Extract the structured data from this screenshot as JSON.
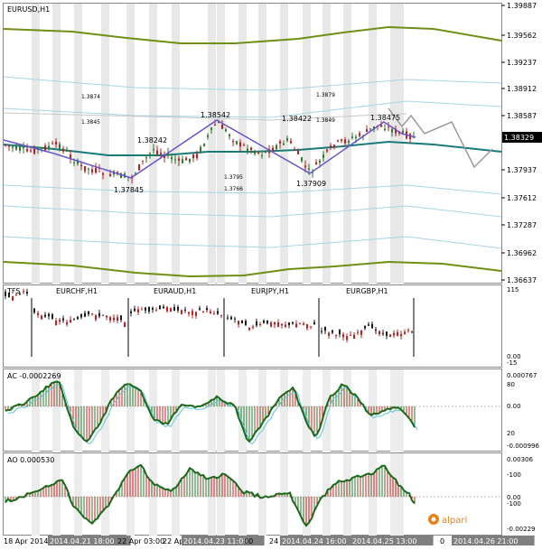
{
  "symbol": "EURUSD,H1",
  "main_prices": [
    "1.39887",
    "1.39562",
    "1.39237",
    "1.38912",
    "1.38587",
    "1.38329",
    "1.37937",
    "1.37612",
    "1.37287",
    "1.36962",
    "1.36637"
  ],
  "current_price": "1.38329",
  "main_labels": [
    {
      "text": "1.3874"
    },
    {
      "text": "1.3845"
    },
    {
      "text": "1.38542"
    },
    {
      "text": "1.38242"
    },
    {
      "text": "1.37845"
    },
    {
      "text": "1.3795"
    },
    {
      "text": "1.3766"
    },
    {
      "text": "1.38422"
    },
    {
      "text": "1.3849"
    },
    {
      "text": "1.3879"
    },
    {
      "text": "1.37909"
    },
    {
      "text": "1.38475"
    }
  ],
  "tfs": {
    "title": "TFS",
    "pairs": [
      "EURCHF,H1",
      "EURAUD,H1",
      "EURJPY,H1",
      "EURGBP,H1"
    ],
    "scale": [
      "115",
      "0.00",
      "-15"
    ]
  },
  "ac": {
    "title": "AC -0.0002269",
    "scale": [
      "0.000767",
      "80",
      "0.00",
      "20",
      "-0.000996"
    ]
  },
  "ao": {
    "title": "AO 0.000530",
    "scale": [
      "0.00306",
      "-100",
      "0.00",
      "-100",
      "-0.00229"
    ]
  },
  "time_axis": [
    {
      "text": "18 Apr 2014",
      "highlight": false
    },
    {
      "text": "2014.04.21 18:00",
      "highlight": true
    },
    {
      "text": "22 Apr 03:00",
      "highlight": false
    },
    {
      "text": "22 Apr",
      "highlight": false
    },
    {
      "text": "2014.04.23 11:00",
      "highlight": true
    },
    {
      "text": "00",
      "highlight": false
    },
    {
      "text": "24",
      "highlight": false
    },
    {
      "text": "2014.04.24 16:00",
      "highlight": true
    },
    {
      "text": "2014.04.25 13:00",
      "highlight": true
    },
    {
      "text": "0",
      "highlight": false
    },
    {
      "text": "2014.04.26 21:00",
      "highlight": true
    }
  ],
  "brand": "alpari",
  "colors": {
    "bull": "#2a7a2a",
    "bear": "#d01818",
    "zigzag": "#6655cc",
    "ma": "#1a7a7a",
    "band": "#6f8f14",
    "env": "#a8d4e4",
    "highlight": "#7f7f7f"
  }
}
